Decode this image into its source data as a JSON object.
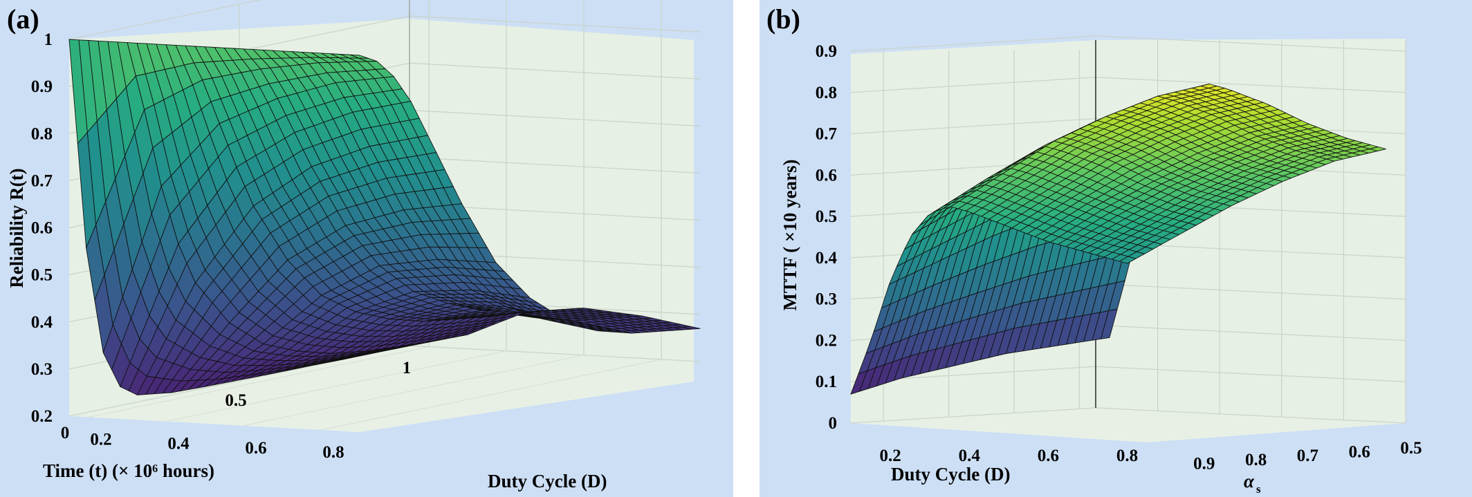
{
  "chart_data": [
    {
      "panel_label": "(a)",
      "type": "surface",
      "zlabel": "Reliability R(t)",
      "xlabel": "Time (t) (× 10⁶ hours)",
      "ylabel": "Duty Cycle (D)",
      "x_ticks": [
        "0",
        "0.5",
        "1"
      ],
      "y_ticks": [
        "0.2",
        "0.4",
        "0.6",
        "0.8"
      ],
      "z_ticks": [
        "0.2",
        "0.3",
        "0.4",
        "0.5",
        "0.6",
        "0.7",
        "0.8",
        "0.9",
        "1"
      ],
      "xlim": [
        0,
        1
      ],
      "ylim": [
        0.15,
        0.9
      ],
      "zlim": [
        0.2,
        1
      ],
      "colormap": "viridis",
      "grid": true,
      "surface": {
        "t": [
          0.0,
          0.05,
          0.1,
          0.15,
          0.2,
          0.3,
          0.4,
          0.5,
          0.6,
          0.7,
          0.8,
          0.9,
          1.0
        ],
        "D": [
          0.15,
          0.3,
          0.45,
          0.6,
          0.75,
          0.9
        ],
        "R": [
          [
            1.0,
            0.55,
            0.32,
            0.24,
            0.215,
            0.205,
            0.203,
            0.202,
            0.201,
            0.201,
            0.2,
            0.2,
            0.2
          ],
          [
            1.0,
            0.85,
            0.68,
            0.55,
            0.46,
            0.36,
            0.3,
            0.27,
            0.25,
            0.24,
            0.235,
            0.232,
            0.23
          ],
          [
            1.0,
            0.92,
            0.82,
            0.72,
            0.63,
            0.5,
            0.41,
            0.36,
            0.33,
            0.31,
            0.3,
            0.29,
            0.285
          ],
          [
            1.0,
            0.95,
            0.88,
            0.8,
            0.72,
            0.58,
            0.48,
            0.41,
            0.37,
            0.34,
            0.32,
            0.31,
            0.3
          ],
          [
            1.0,
            0.97,
            0.92,
            0.85,
            0.77,
            0.62,
            0.5,
            0.42,
            0.37,
            0.33,
            0.31,
            0.3,
            0.29
          ],
          [
            1.0,
            0.98,
            0.94,
            0.88,
            0.8,
            0.64,
            0.5,
            0.41,
            0.35,
            0.31,
            0.29,
            0.28,
            0.27
          ]
        ]
      }
    },
    {
      "panel_label": "(b)",
      "type": "surface",
      "zlabel": "MTTF ( ×10 years)",
      "xlabel": "Duty Cycle (D)",
      "ylabel": "α",
      "ylabel_sub": "s",
      "x_ticks": [
        "0.2",
        "0.4",
        "0.6",
        "0.8"
      ],
      "y_ticks": [
        "0.9",
        "0.8",
        "0.7",
        "0.6",
        "0.5"
      ],
      "z_ticks": [
        "0",
        "0.1",
        "0.2",
        "0.3",
        "0.4",
        "0.5",
        "0.6",
        "0.7",
        "0.8",
        "0.9"
      ],
      "xlim": [
        0.1,
        0.85
      ],
      "ylim": [
        0.5,
        1.0
      ],
      "zlim": [
        0,
        0.9
      ],
      "colormap": "viridis",
      "grid": true,
      "surface": {
        "D": [
          0.1,
          0.15,
          0.2,
          0.25,
          0.3,
          0.35,
          0.4,
          0.5,
          0.6,
          0.7,
          0.8
        ],
        "alpha_s": [
          1.0,
          0.9,
          0.8,
          0.7,
          0.6,
          0.5
        ],
        "MTTF": [
          [
            0.07,
            0.2,
            0.35,
            0.46,
            0.52,
            0.54,
            0.53,
            0.5,
            0.47,
            0.45,
            0.43
          ],
          [
            0.1,
            0.24,
            0.4,
            0.52,
            0.59,
            0.61,
            0.6,
            0.57,
            0.54,
            0.51,
            0.49
          ],
          [
            0.12,
            0.27,
            0.45,
            0.58,
            0.65,
            0.68,
            0.67,
            0.64,
            0.6,
            0.57,
            0.55
          ],
          [
            0.14,
            0.3,
            0.49,
            0.62,
            0.7,
            0.73,
            0.72,
            0.69,
            0.65,
            0.62,
            0.6
          ],
          [
            0.15,
            0.32,
            0.52,
            0.66,
            0.74,
            0.77,
            0.76,
            0.73,
            0.69,
            0.66,
            0.64
          ],
          [
            0.16,
            0.34,
            0.54,
            0.68,
            0.76,
            0.79,
            0.78,
            0.75,
            0.71,
            0.68,
            0.66
          ]
        ]
      }
    }
  ]
}
